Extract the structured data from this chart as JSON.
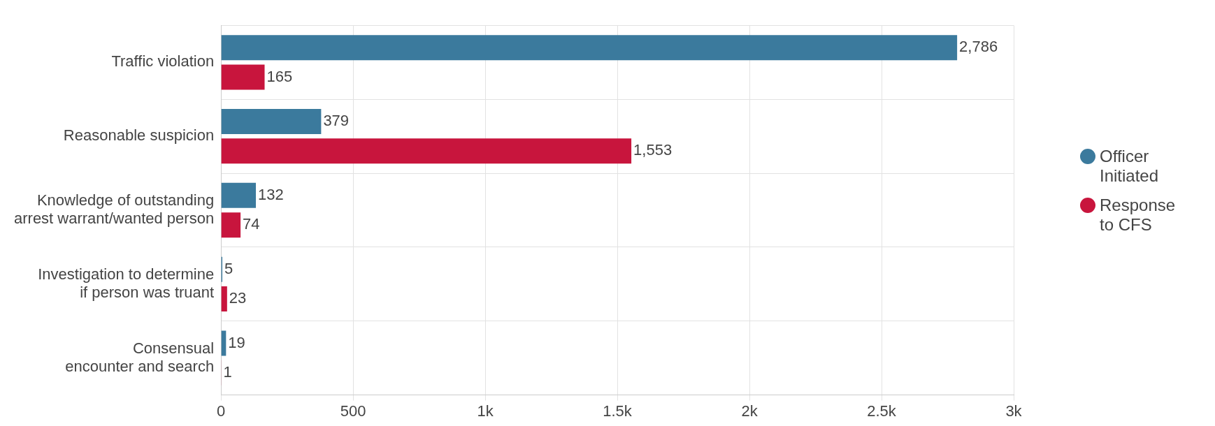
{
  "chart_data": {
    "type": "bar",
    "orientation": "horizontal",
    "categories": [
      "Traffic violation",
      "Reasonable suspicion",
      "Knowledge of outstanding arrest warrant/wanted person",
      "Investigation to determine if person was truant",
      "Consensual encounter and search"
    ],
    "series": [
      {
        "name": "Officer Initiated",
        "color": "#3b7a9d",
        "values": [
          2786,
          379,
          132,
          5,
          19
        ],
        "value_labels": [
          "2,786",
          "379",
          "132",
          "5",
          "19"
        ]
      },
      {
        "name": "Response to CFS",
        "color": "#c8153d",
        "values": [
          165,
          1553,
          74,
          23,
          1
        ],
        "value_labels": [
          "165",
          "1,553",
          "74",
          "23",
          "1"
        ]
      }
    ],
    "xlim": [
      0,
      3000
    ],
    "xticks": [
      0,
      500,
      {
        "value": 1000,
        "label": "1k"
      },
      {
        "value": 1500,
        "label": "1.5k"
      },
      {
        "value": 2000,
        "label": "2k"
      },
      {
        "value": 2500,
        "label": "2.5k"
      },
      {
        "value": 3000,
        "label": "3k"
      }
    ],
    "grid": true,
    "legend": "right"
  }
}
